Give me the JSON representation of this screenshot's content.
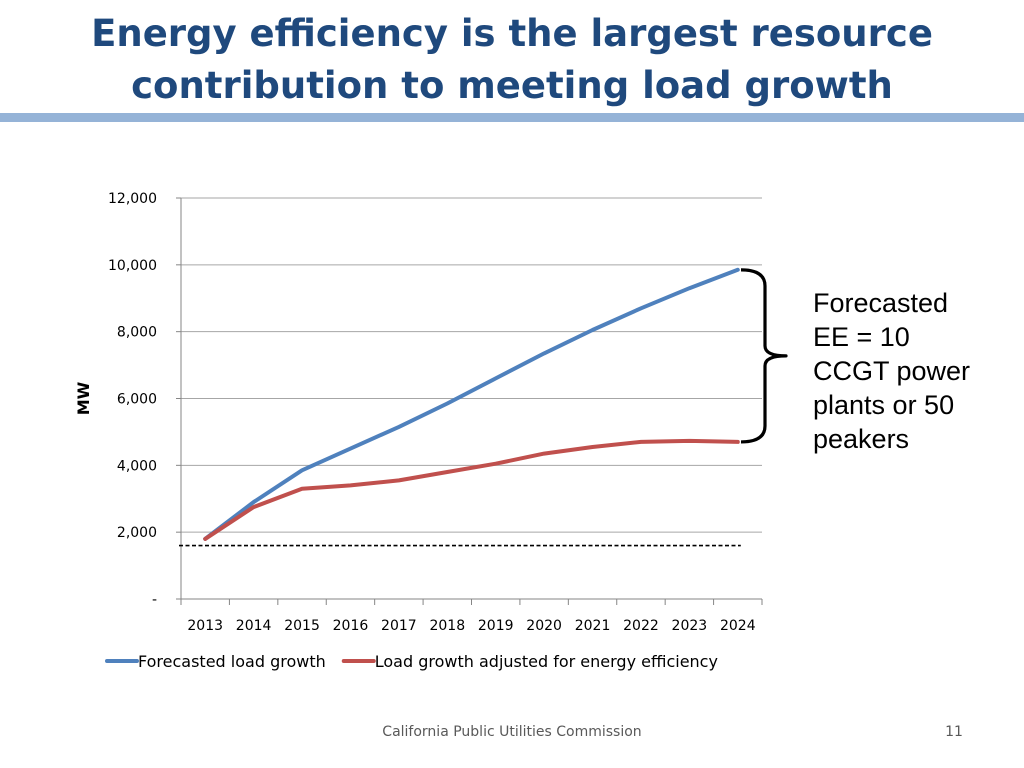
{
  "slide": {
    "title_line1": "Energy efficiency is the largest resource",
    "title_line2": "contribution to meeting load growth",
    "callout": "Forecasted\nEE =  10\nCCGT power\nplants or 50\npeakers",
    "footer": "California Public Utilities Commission",
    "page_number": "11"
  },
  "colors": {
    "title": "#1F497D",
    "rule": "#95B3D7",
    "forecast": "#4F81BD",
    "adjusted": "#C0504D",
    "grid": "#A6A6A6"
  },
  "chart_data": {
    "type": "line",
    "title": "",
    "xlabel": "",
    "ylabel": "MW",
    "ylim": [
      0,
      12000
    ],
    "y_ticks": [
      0,
      2000,
      4000,
      6000,
      8000,
      10000,
      12000
    ],
    "y_tick_labels": [
      "-",
      "2,000",
      "4,000",
      "6,000",
      "8,000",
      "10,000",
      "12,000"
    ],
    "categories": [
      "2013",
      "2014",
      "2015",
      "2016",
      "2017",
      "2018",
      "2019",
      "2020",
      "2021",
      "2022",
      "2023",
      "2024"
    ],
    "grid": true,
    "legend_position": "bottom",
    "series": [
      {
        "name": "Forecasted load growth",
        "color": "#4F81BD",
        "values": [
          1800,
          2900,
          3850,
          4500,
          5150,
          5850,
          6600,
          7350,
          8050,
          8700,
          9300,
          9850
        ]
      },
      {
        "name": "Load growth adjusted for energy efficiency",
        "color": "#C0504D",
        "values": [
          1800,
          2750,
          3300,
          3400,
          3550,
          3800,
          4050,
          4350,
          4550,
          4700,
          4730,
          4700
        ]
      }
    ],
    "annotations": [
      {
        "type": "dashed-reference-line",
        "value": 1600
      },
      {
        "type": "brace",
        "from_value": 4700,
        "to_value": 9850,
        "label_ref": "slide.callout"
      }
    ]
  }
}
